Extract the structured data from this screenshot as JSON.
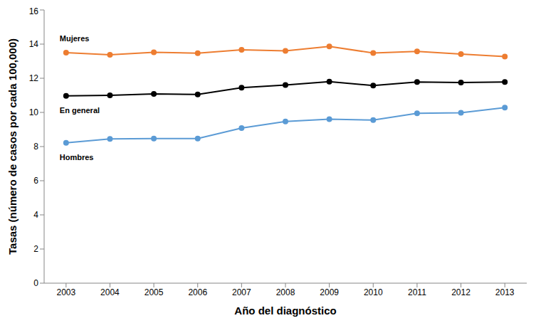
{
  "chart_data": {
    "type": "line",
    "x_label": "Año del diagnóstico",
    "y_label": "Tasas (número de casos por cada 100,000)",
    "categories": [
      "2003",
      "2004",
      "2005",
      "2006",
      "2007",
      "2008",
      "2009",
      "2010",
      "2011",
      "2012",
      "2013"
    ],
    "series": [
      {
        "name": "Mujeres",
        "color": "#ed7d31",
        "marker": "circle",
        "values": [
          13.5,
          13.37,
          13.52,
          13.47,
          13.67,
          13.6,
          13.86,
          13.48,
          13.57,
          13.42,
          13.27
        ]
      },
      {
        "name": "En general",
        "color": "#000000",
        "marker": "circle",
        "values": [
          10.97,
          11.0,
          11.08,
          11.05,
          11.45,
          11.6,
          11.8,
          11.57,
          11.78,
          11.75,
          11.78
        ]
      },
      {
        "name": "Hombres",
        "color": "#5b9bd5",
        "marker": "circle",
        "values": [
          8.22,
          8.45,
          8.47,
          8.47,
          9.08,
          9.47,
          9.6,
          9.55,
          9.95,
          9.98,
          10.28
        ]
      }
    ],
    "ylim": [
      0,
      16
    ],
    "yticks": [
      0,
      2,
      4,
      6,
      8,
      10,
      12,
      14,
      16
    ],
    "grid": false
  }
}
